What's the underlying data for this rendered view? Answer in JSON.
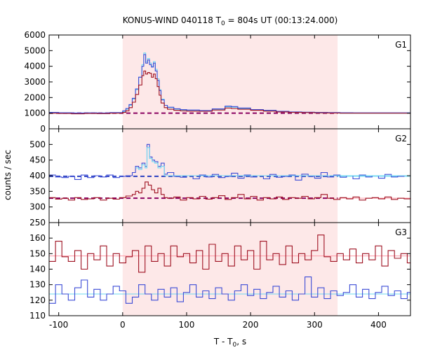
{
  "title": {
    "prefix": "KONUS-WIND 040118 T",
    "subscript": "0",
    "suffix": " = 804s UT (00:13:24.000)"
  },
  "ylabel": "counts / sec",
  "xlabel": {
    "prefix": "T - T",
    "subscript": "0",
    "suffix": ", s"
  },
  "colors": {
    "shade": "#fde8e8",
    "blue": "#3b4bd6",
    "red": "#9e1020",
    "cyan": "#6fd8f2",
    "pink": "#ff9aa8",
    "dash_red": "#8a0060",
    "dash_blue": "#2a3fc0"
  },
  "chart_data": [
    {
      "type": "line",
      "panel": "G1",
      "label": "G1",
      "xlim": [
        -115,
        450
      ],
      "ylim": [
        0,
        6000
      ],
      "xticks": [
        -100,
        0,
        100,
        200,
        300,
        400
      ],
      "yticks": [
        0,
        1000,
        2000,
        3000,
        4000,
        5000,
        6000
      ],
      "shaded_interval": [
        0,
        336
      ],
      "grid": false,
      "step_series": [
        {
          "color": "cyan",
          "x": [
            -115,
            -100,
            -80,
            -60,
            -40,
            -20,
            0,
            5,
            10,
            15,
            20,
            25,
            30,
            33,
            36,
            39,
            42,
            45,
            48,
            51,
            54,
            57,
            60,
            65,
            70,
            80,
            90,
            100,
            120,
            140,
            160,
            170,
            180,
            200,
            220,
            240,
            260,
            280,
            300,
            320,
            340,
            360,
            400,
            450
          ],
          "y": [
            1020,
            1000,
            980,
            1000,
            990,
            1020,
            1100,
            1250,
            1500,
            1900,
            2500,
            3300,
            4100,
            4850,
            4300,
            4500,
            4200,
            4000,
            4300,
            3800,
            3200,
            2500,
            1900,
            1500,
            1350,
            1250,
            1200,
            1180,
            1150,
            1250,
            1400,
            1380,
            1300,
            1200,
            1150,
            1100,
            1050,
            1050,
            1020,
            1020,
            1000,
            1000,
            1000,
            1000
          ]
        },
        {
          "color": "blue",
          "x": [
            -115,
            -100,
            -80,
            -60,
            -40,
            -20,
            0,
            5,
            10,
            15,
            20,
            25,
            30,
            33,
            36,
            39,
            42,
            45,
            48,
            51,
            54,
            57,
            60,
            65,
            70,
            80,
            90,
            100,
            120,
            140,
            160,
            170,
            180,
            200,
            220,
            240,
            260,
            280,
            300,
            320,
            340,
            360,
            400,
            450
          ],
          "y": [
            1050,
            1030,
            1010,
            1020,
            1010,
            1040,
            1150,
            1300,
            1550,
            1950,
            2550,
            3300,
            4000,
            4750,
            4200,
            4400,
            4100,
            3950,
            4200,
            3700,
            3100,
            2450,
            1850,
            1500,
            1380,
            1280,
            1230,
            1200,
            1170,
            1270,
            1450,
            1420,
            1330,
            1230,
            1180,
            1120,
            1080,
            1060,
            1050,
            1040,
            1030,
            1020,
            1020,
            1020
          ]
        },
        {
          "color": "red",
          "x": [
            -115,
            -100,
            -80,
            -60,
            -40,
            -20,
            0,
            5,
            10,
            15,
            20,
            25,
            30,
            33,
            36,
            39,
            42,
            45,
            48,
            51,
            54,
            57,
            60,
            65,
            70,
            80,
            90,
            100,
            120,
            140,
            160,
            170,
            180,
            200,
            220,
            240,
            260,
            280,
            300,
            320,
            340,
            360,
            400,
            450
          ],
          "y": [
            1000,
            980,
            960,
            980,
            970,
            1000,
            1050,
            1150,
            1350,
            1700,
            2200,
            2800,
            3400,
            3700,
            3500,
            3600,
            3550,
            3300,
            3500,
            3200,
            2700,
            2150,
            1650,
            1350,
            1250,
            1180,
            1150,
            1130,
            1120,
            1200,
            1330,
            1300,
            1250,
            1180,
            1130,
            1080,
            1050,
            1040,
            1020,
            1010,
            1000,
            1000,
            1000,
            1000
          ]
        }
      ],
      "ref_lines": [
        {
          "color": "dash_red",
          "y": 1000,
          "x": [
            -115,
            336
          ],
          "dashed": true
        },
        {
          "color": "cyan",
          "y": 1000,
          "x": [
            336,
            450
          ],
          "dashed": false
        }
      ]
    },
    {
      "type": "line",
      "panel": "G2",
      "label": "G2",
      "xlim": [
        -115,
        450
      ],
      "ylim": [
        250,
        550
      ],
      "xticks": [
        -100,
        0,
        100,
        200,
        300,
        400
      ],
      "yticks": [
        250,
        300,
        350,
        400,
        450,
        500
      ],
      "shaded_interval": [
        0,
        336
      ],
      "grid": false,
      "step_series": [
        {
          "color": "blue",
          "x": [
            -115,
            -105,
            -95,
            -85,
            -75,
            -65,
            -55,
            -45,
            -35,
            -25,
            -15,
            -5,
            5,
            15,
            20,
            25,
            30,
            35,
            38,
            42,
            46,
            50,
            55,
            60,
            65,
            70,
            80,
            90,
            100,
            110,
            120,
            130,
            140,
            150,
            160,
            170,
            180,
            190,
            200,
            210,
            220,
            230,
            240,
            250,
            260,
            270,
            280,
            290,
            300,
            310,
            320,
            330,
            340,
            350,
            360,
            370,
            380,
            390,
            400,
            410,
            420,
            430,
            440,
            450
          ],
          "y": [
            402,
            396,
            394,
            398,
            388,
            402,
            394,
            400,
            396,
            402,
            394,
            398,
            400,
            410,
            430,
            425,
            440,
            430,
            500,
            460,
            450,
            445,
            430,
            440,
            405,
            410,
            398,
            395,
            400,
            390,
            402,
            396,
            404,
            394,
            398,
            408,
            392,
            402,
            396,
            400,
            390,
            404,
            395,
            398,
            402,
            386,
            405,
            398,
            392,
            410,
            396,
            402,
            395,
            400,
            390,
            402,
            396,
            400,
            392,
            404,
            396,
            398,
            400,
            400
          ]
        },
        {
          "color": "cyan",
          "x": [
            20,
            25,
            30,
            35,
            38,
            42,
            46,
            50,
            55,
            60,
            65
          ],
          "y": [
            425,
            420,
            435,
            425,
            490,
            455,
            445,
            440,
            425,
            430,
            400
          ]
        },
        {
          "color": "red",
          "x": [
            -115,
            -105,
            -95,
            -85,
            -75,
            -65,
            -55,
            -45,
            -35,
            -25,
            -15,
            -5,
            5,
            15,
            20,
            25,
            30,
            35,
            40,
            45,
            50,
            55,
            60,
            65,
            70,
            80,
            90,
            100,
            110,
            120,
            130,
            140,
            150,
            160,
            170,
            180,
            190,
            200,
            210,
            220,
            230,
            240,
            250,
            260,
            270,
            280,
            290,
            300,
            310,
            320,
            330,
            340,
            350,
            360,
            370,
            380,
            390,
            400,
            410,
            420,
            430,
            440,
            450
          ],
          "y": [
            330,
            325,
            328,
            322,
            330,
            324,
            326,
            330,
            322,
            328,
            325,
            330,
            335,
            340,
            350,
            345,
            360,
            380,
            370,
            355,
            345,
            360,
            340,
            330,
            328,
            332,
            322,
            330,
            326,
            334,
            325,
            330,
            336,
            324,
            330,
            340,
            326,
            334,
            322,
            330,
            326,
            332,
            324,
            330,
            328,
            334,
            326,
            330,
            340,
            328,
            324,
            330,
            326,
            332,
            322,
            328,
            330,
            326,
            332,
            324,
            328,
            326,
            328
          ]
        }
      ],
      "ref_lines": [
        {
          "color": "dash_blue",
          "y": 398,
          "x": [
            -115,
            336
          ],
          "dashed": true
        },
        {
          "color": "cyan",
          "y": 398,
          "x": [
            336,
            450
          ],
          "dashed": false
        },
        {
          "color": "dash_red",
          "y": 328,
          "x": [
            -115,
            336
          ],
          "dashed": true
        },
        {
          "color": "pink",
          "y": 328,
          "x": [
            336,
            450
          ],
          "dashed": false
        }
      ]
    },
    {
      "type": "line",
      "panel": "G3",
      "label": "G3",
      "xlim": [
        -115,
        450
      ],
      "ylim": [
        110,
        170
      ],
      "xticks": [
        -100,
        0,
        100,
        200,
        300,
        400
      ],
      "yticks": [
        110,
        120,
        130,
        140,
        150,
        160
      ],
      "shaded_interval": [
        0,
        336
      ],
      "grid": false,
      "step_series": [
        {
          "color": "red",
          "x": [
            -115,
            -105,
            -95,
            -85,
            -75,
            -65,
            -55,
            -45,
            -35,
            -25,
            -15,
            -5,
            5,
            15,
            25,
            35,
            45,
            55,
            65,
            75,
            85,
            95,
            105,
            115,
            125,
            135,
            145,
            155,
            165,
            175,
            185,
            195,
            205,
            215,
            225,
            235,
            245,
            255,
            265,
            275,
            285,
            295,
            305,
            315,
            325,
            335,
            345,
            355,
            365,
            375,
            385,
            395,
            405,
            415,
            425,
            435,
            445
          ],
          "y": [
            145,
            158,
            148,
            145,
            152,
            140,
            150,
            146,
            155,
            142,
            150,
            144,
            148,
            152,
            138,
            155,
            145,
            150,
            142,
            155,
            148,
            150,
            144,
            152,
            140,
            156,
            145,
            150,
            142,
            155,
            146,
            152,
            140,
            158,
            146,
            150,
            143,
            155,
            144,
            150,
            146,
            152,
            162,
            148,
            145,
            150,
            146,
            153,
            144,
            150,
            146,
            155,
            142,
            152,
            147,
            150,
            144
          ]
        },
        {
          "color": "blue",
          "x": [
            -115,
            -105,
            -95,
            -85,
            -75,
            -65,
            -55,
            -45,
            -35,
            -25,
            -15,
            -5,
            5,
            15,
            25,
            35,
            45,
            55,
            65,
            75,
            85,
            95,
            105,
            115,
            125,
            135,
            145,
            155,
            165,
            175,
            185,
            195,
            205,
            215,
            225,
            235,
            245,
            255,
            265,
            275,
            285,
            295,
            305,
            315,
            325,
            335,
            345,
            355,
            365,
            375,
            385,
            395,
            405,
            415,
            425,
            435,
            445
          ],
          "y": [
            118,
            130,
            124,
            120,
            128,
            133,
            122,
            127,
            120,
            124,
            129,
            126,
            118,
            122,
            130,
            124,
            120,
            127,
            122,
            128,
            119,
            125,
            130,
            122,
            126,
            121,
            128,
            124,
            120,
            126,
            130,
            123,
            127,
            121,
            125,
            129,
            122,
            126,
            120,
            124,
            135,
            122,
            128,
            121,
            126,
            123,
            125,
            130,
            122,
            127,
            121,
            125,
            129,
            123,
            126,
            121,
            125
          ]
        }
      ],
      "ref_lines": [
        {
          "color": "pink",
          "y": 148.5,
          "x": [
            -115,
            450
          ],
          "dashed": false
        },
        {
          "color": "cyan",
          "y": 124,
          "x": [
            -115,
            450
          ],
          "dashed": false
        }
      ]
    }
  ]
}
